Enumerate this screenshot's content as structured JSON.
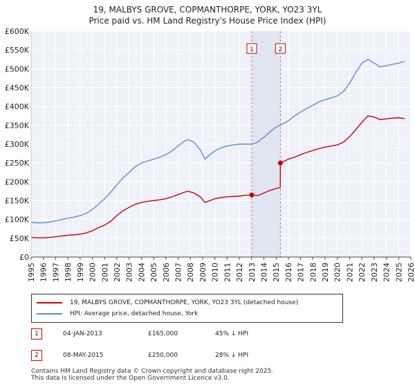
{
  "chart_data": {
    "type": "line",
    "title": "19, MALBYS GROVE, COPMANTHORPE, YORK, YO23 3YL",
    "subtitle": "Price paid vs. HM Land Registry's House Price Index (HPI)",
    "xlim": [
      1995,
      2026
    ],
    "ylim": [
      0,
      600000
    ],
    "y_ticks": [
      {
        "value": 0,
        "label": "£0"
      },
      {
        "value": 50000,
        "label": "£50K"
      },
      {
        "value": 100000,
        "label": "£100K"
      },
      {
        "value": 150000,
        "label": "£150K"
      },
      {
        "value": 200000,
        "label": "£200K"
      },
      {
        "value": 250000,
        "label": "£250K"
      },
      {
        "value": 300000,
        "label": "£300K"
      },
      {
        "value": 350000,
        "label": "£350K"
      },
      {
        "value": 400000,
        "label": "£400K"
      },
      {
        "value": 450000,
        "label": "£450K"
      },
      {
        "value": 500000,
        "label": "£500K"
      },
      {
        "value": 550000,
        "label": "£550K"
      },
      {
        "value": 600000,
        "label": "£600K"
      }
    ],
    "x_ticks": [
      "1995",
      "1996",
      "1997",
      "1998",
      "1999",
      "2000",
      "2001",
      "2002",
      "2003",
      "2004",
      "2005",
      "2006",
      "2007",
      "2008",
      "2009",
      "2010",
      "2011",
      "2012",
      "2013",
      "2014",
      "2015",
      "2016",
      "2017",
      "2018",
      "2019",
      "2020",
      "2021",
      "2022",
      "2023",
      "2024",
      "2025",
      "2026"
    ],
    "grid": true,
    "series": [
      {
        "name": "19, MALBYS GROVE, COPMANTHORPE, YORK, YO23 3YL (detached house)",
        "color": "#cc0000",
        "x": [
          1995.0,
          1995.5,
          1996.0,
          1996.5,
          1997.0,
          1997.5,
          1998.0,
          1998.5,
          1999.0,
          1999.5,
          2000.0,
          2000.5,
          2001.0,
          2001.5,
          2002.0,
          2002.5,
          2003.0,
          2003.5,
          2004.0,
          2004.5,
          2005.0,
          2005.5,
          2006.0,
          2006.5,
          2007.0,
          2007.5,
          2007.8,
          2008.3,
          2008.8,
          2009.2,
          2009.6,
          2010.0,
          2010.5,
          2011.0,
          2011.5,
          2012.0,
          2012.5,
          2013.01,
          2013.5,
          2014.0,
          2014.5,
          2015.0,
          2015.34,
          2015.35,
          2016.0,
          2016.5,
          2017.0,
          2017.5,
          2018.0,
          2018.5,
          2019.0,
          2019.5,
          2020.0,
          2020.5,
          2021.0,
          2021.5,
          2022.0,
          2022.5,
          2023.0,
          2023.5,
          2024.0,
          2024.5,
          2025.0,
          2025.5
        ],
        "values": [
          52000,
          51000,
          51000,
          52000,
          54000,
          56000,
          58000,
          59000,
          61000,
          64000,
          70000,
          78000,
          85000,
          95000,
          110000,
          123000,
          132000,
          140000,
          145000,
          148000,
          150000,
          152000,
          155000,
          160000,
          166000,
          172000,
          175000,
          170000,
          160000,
          145000,
          150000,
          155000,
          158000,
          160000,
          161000,
          162000,
          164000,
          165000,
          163000,
          170000,
          177000,
          182000,
          185000,
          250000,
          260000,
          265000,
          272000,
          278000,
          283000,
          288000,
          292000,
          295000,
          298000,
          305000,
          320000,
          338000,
          358000,
          375000,
          372000,
          365000,
          367000,
          369000,
          370000,
          368000
        ]
      },
      {
        "name": "HPI: Average price, detached house, York",
        "color": "#5b8bd0",
        "x": [
          1995.0,
          1995.5,
          1996.0,
          1996.5,
          1997.0,
          1997.5,
          1998.0,
          1998.5,
          1999.0,
          1999.5,
          2000.0,
          2000.5,
          2001.0,
          2001.5,
          2002.0,
          2002.5,
          2003.0,
          2003.5,
          2004.0,
          2004.5,
          2005.0,
          2005.5,
          2006.0,
          2006.5,
          2007.0,
          2007.5,
          2007.8,
          2008.3,
          2008.8,
          2009.2,
          2009.6,
          2010.0,
          2010.5,
          2011.0,
          2011.5,
          2012.0,
          2012.5,
          2013.0,
          2013.5,
          2014.0,
          2014.5,
          2015.0,
          2015.5,
          2016.0,
          2016.5,
          2017.0,
          2017.5,
          2018.0,
          2018.5,
          2019.0,
          2019.5,
          2020.0,
          2020.5,
          2021.0,
          2021.5,
          2022.0,
          2022.5,
          2023.0,
          2023.5,
          2024.0,
          2024.5,
          2025.0,
          2025.5
        ],
        "values": [
          92000,
          91000,
          91000,
          93000,
          96000,
          100000,
          103000,
          106000,
          110000,
          116000,
          126000,
          140000,
          155000,
          172000,
          192000,
          210000,
          225000,
          240000,
          250000,
          255000,
          260000,
          265000,
          272000,
          282000,
          295000,
          308000,
          312000,
          305000,
          285000,
          260000,
          272000,
          282000,
          290000,
          295000,
          298000,
          300000,
          300000,
          300000,
          305000,
          318000,
          332000,
          345000,
          353000,
          362000,
          375000,
          385000,
          395000,
          403000,
          412000,
          418000,
          423000,
          428000,
          440000,
          462000,
          490000,
          515000,
          525000,
          515000,
          505000,
          508000,
          512000,
          515000,
          520000
        ]
      }
    ],
    "annotations": [
      {
        "id": "1",
        "x": 2013.01,
        "y": 165000
      },
      {
        "id": "2",
        "x": 2015.35,
        "y": 250000
      }
    ]
  },
  "legend": [
    {
      "label": "19, MALBYS GROVE, COPMANTHORPE, YORK, YO23 3YL (detached house)",
      "color": "#cc0000"
    },
    {
      "label": "HPI: Average price, detached house, York",
      "color": "#5b8bd0"
    }
  ],
  "transactions": [
    {
      "num": "1",
      "date": "04-JAN-2013",
      "price": "£165,000",
      "hpi": "45% ↓ HPI"
    },
    {
      "num": "2",
      "date": "08-MAY-2015",
      "price": "£250,000",
      "hpi": "28% ↓ HPI"
    }
  ],
  "footer": {
    "line1": "Contains HM Land Registry data © Crown copyright and database right 2025.",
    "line2": "This data is licensed under the Open Government Licence v3.0."
  }
}
